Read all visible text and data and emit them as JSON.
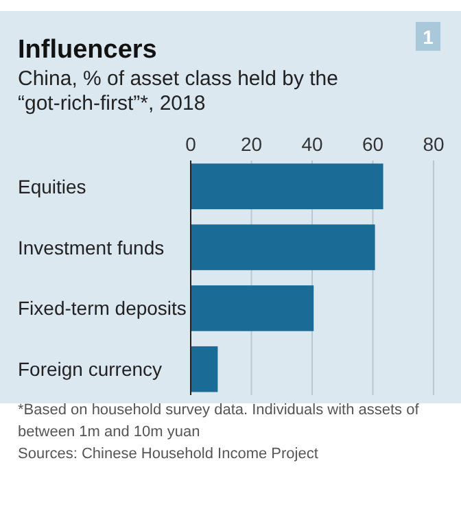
{
  "chart_data": {
    "type": "bar",
    "orientation": "horizontal",
    "title": "Influencers",
    "subtitle": "China, % of asset class held by the “got-rich-first”*, 2018",
    "categories": [
      "Equities",
      "Investment funds",
      "Fixed-term deposits",
      "Foreign currency"
    ],
    "values": [
      63.4,
      60.7,
      40.5,
      8.9
    ],
    "color": "#1b6b97",
    "xlim": [
      0,
      80
    ],
    "xticks": [
      0,
      20,
      40,
      60,
      80
    ],
    "grid": "x",
    "annotations": [
      "1",
      "*Based on household survey data. Individuals with assets of between 1m and 10m yuan",
      "Sources: Chinese Household Income Project"
    ]
  }
}
